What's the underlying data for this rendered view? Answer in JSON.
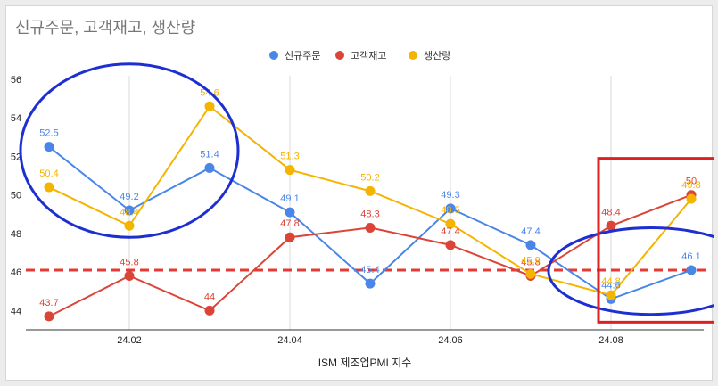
{
  "chart_data": {
    "type": "line",
    "title": "신규주문, 고객재고, 생산량",
    "xlabel": "ISM 제조업PMI 지수",
    "ylabel": "",
    "x": [
      "24.01",
      "24.02",
      "24.03",
      "24.04",
      "24.05",
      "24.06",
      "24.07",
      "24.08",
      "24.09"
    ],
    "x_ticks": [
      "24.02",
      "24.04",
      "24.06",
      "24.08"
    ],
    "ylim": [
      43,
      56
    ],
    "y_ticks": [
      44,
      46,
      48,
      50,
      52,
      54,
      56
    ],
    "grid": "vertical",
    "legend_position": "top-center",
    "reference_line": {
      "value": 46.1,
      "style": "dashed",
      "color": "#e53935"
    },
    "series": [
      {
        "name": "신규주문",
        "color": "#4a86e8",
        "values": [
          52.5,
          49.2,
          51.4,
          49.1,
          45.4,
          49.3,
          47.4,
          44.6,
          46.1
        ],
        "labels": [
          "52.5",
          "49.2",
          "51.4",
          "49.1",
          "45.4",
          "49.3",
          "47.4",
          "44.6",
          "46.1"
        ]
      },
      {
        "name": "고객재고",
        "color": "#db4437",
        "values": [
          43.7,
          45.8,
          44.0,
          47.8,
          48.3,
          47.4,
          45.8,
          48.4,
          50.0
        ],
        "labels": [
          "43.7",
          "45.8",
          "44",
          "47.8",
          "48.3",
          "47.4",
          "45.8",
          "48.4",
          "50"
        ]
      },
      {
        "name": "생산량",
        "color": "#f4b400",
        "values": [
          50.4,
          48.4,
          54.6,
          51.3,
          50.2,
          48.5,
          45.9,
          44.8,
          49.8
        ],
        "labels": [
          "50.4",
          "48.4",
          "54.6",
          "51.3",
          "50.2",
          "48.5",
          "45.9",
          "44.8",
          "49.8"
        ]
      }
    ],
    "annotations": [
      {
        "shape": "ellipse",
        "color": "#1e2fd1",
        "x_from": "24.01",
        "x_to": "24.03",
        "y_from": 47.8,
        "y_to": 56.8
      },
      {
        "shape": "ellipse",
        "color": "#1e2fd1",
        "x_from": "24.08",
        "x_to": "24.09",
        "y_from": 43.8,
        "y_to": 48.3
      },
      {
        "shape": "rect",
        "color": "#e02020",
        "x_from": "24.08",
        "x_to": "24.09",
        "y_from": 43.4,
        "y_to": 51.9
      }
    ]
  }
}
